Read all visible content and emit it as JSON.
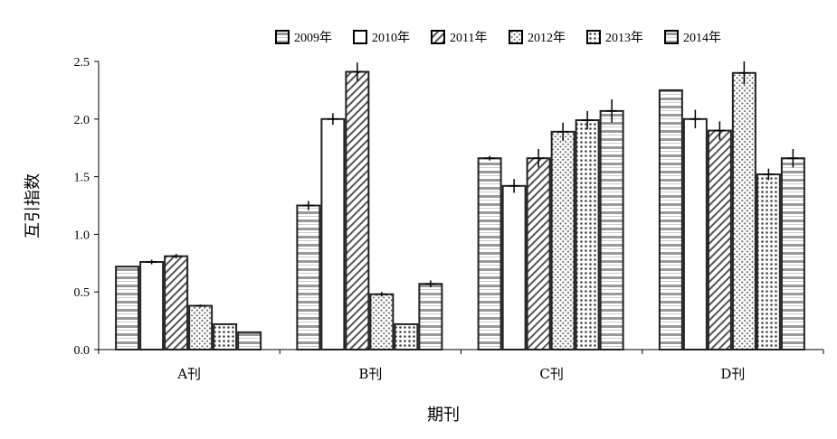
{
  "chart_data": {
    "type": "bar",
    "title": "",
    "xlabel": "期刊",
    "ylabel": "互引指数",
    "categories": [
      "A刊",
      "B刊",
      "C刊",
      "D刊"
    ],
    "ylim": [
      0,
      2.5
    ],
    "yticks": [
      "0.0",
      "0.5",
      "1.0",
      "1.5",
      "2.0",
      "2.5"
    ],
    "legend_position": "top",
    "grid": false,
    "series": [
      {
        "name": "2009年",
        "values": [
          0.72,
          1.25,
          1.66,
          2.25
        ],
        "errors": [
          0.0,
          0.04,
          0.02,
          0.0
        ],
        "pattern": "hstripe"
      },
      {
        "name": "2010年",
        "values": [
          0.76,
          2.0,
          1.42,
          2.0
        ],
        "errors": [
          0.02,
          0.05,
          0.06,
          0.08
        ],
        "pattern": "plain"
      },
      {
        "name": "2011年",
        "values": [
          0.81,
          2.41,
          1.66,
          1.9
        ],
        "errors": [
          0.02,
          0.08,
          0.08,
          0.08
        ],
        "pattern": "hatch"
      },
      {
        "name": "2012年",
        "values": [
          0.38,
          0.48,
          1.89,
          2.4
        ],
        "errors": [
          0.01,
          0.02,
          0.08,
          0.1
        ],
        "pattern": "dots"
      },
      {
        "name": "2013年",
        "values": [
          0.22,
          0.22,
          1.99,
          1.52
        ],
        "errors": [
          0.0,
          0.0,
          0.08,
          0.05
        ],
        "pattern": "dots2"
      },
      {
        "name": "2014年",
        "values": [
          0.15,
          0.57,
          2.07,
          1.66
        ],
        "errors": [
          0.0,
          0.03,
          0.1,
          0.08
        ],
        "pattern": "hstripe"
      }
    ]
  }
}
